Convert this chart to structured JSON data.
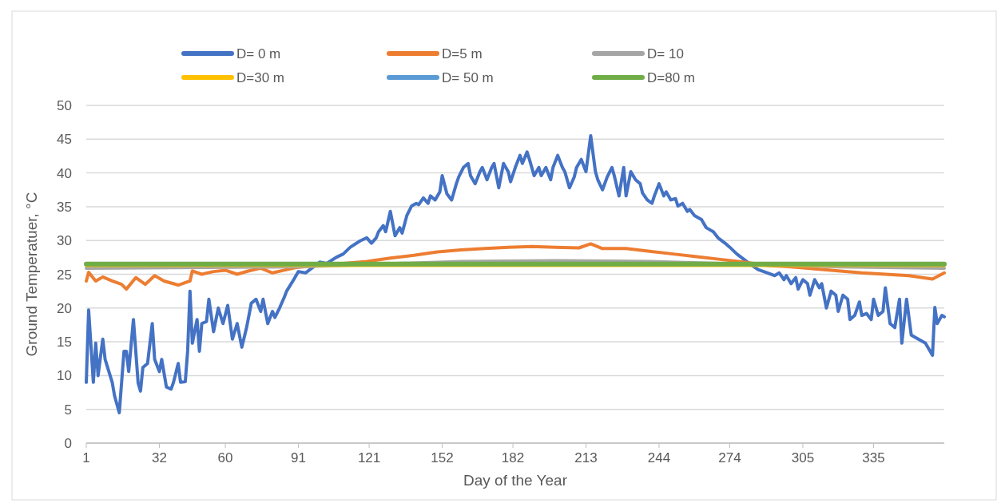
{
  "chart_data": {
    "type": "line",
    "xlabel": "Day of the Year",
    "ylabel": "Ground Temperatuer, °C",
    "xlim": [
      1,
      365
    ],
    "xticks": [
      1,
      32,
      60,
      91,
      121,
      152,
      182,
      213,
      244,
      274,
      305,
      335
    ],
    "ylim": [
      0,
      50
    ],
    "yticks": [
      0,
      5,
      10,
      15,
      20,
      25,
      30,
      35,
      40,
      45,
      50
    ],
    "grid": "y",
    "legend": "top",
    "line_style": "solid",
    "marker": "none",
    "series": [
      {
        "name": "D= 0 m",
        "color": "#4472c4",
        "x": [
          1,
          2,
          4,
          5,
          6,
          8,
          9,
          12,
          13,
          15,
          17,
          18,
          19,
          21,
          23,
          24,
          25,
          27,
          29,
          30,
          32,
          33,
          35,
          37,
          38,
          40,
          41,
          43,
          44,
          45,
          46,
          48,
          49,
          50,
          52,
          53,
          55,
          57,
          59,
          61,
          63,
          65,
          67,
          69,
          71,
          73,
          75,
          76,
          78,
          80,
          81,
          83,
          85,
          86,
          89,
          91,
          94,
          97,
          100,
          103,
          107,
          110,
          113,
          117,
          120,
          122,
          124,
          125,
          127,
          128,
          130,
          132,
          134,
          135,
          137,
          139,
          141,
          142,
          144,
          146,
          147,
          149,
          151,
          152,
          154,
          156,
          158,
          159,
          161,
          163,
          164,
          166,
          168,
          169,
          171,
          173,
          174,
          176,
          178,
          180,
          181,
          183,
          185,
          186,
          188,
          189,
          191,
          193,
          194,
          196,
          198,
          199,
          201,
          203,
          204,
          206,
          208,
          209,
          211,
          213,
          215,
          217,
          218,
          220,
          222,
          224,
          225,
          227,
          229,
          230,
          232,
          234,
          236,
          237,
          239,
          241,
          242,
          244,
          246,
          247,
          249,
          251,
          252,
          254,
          256,
          257,
          259,
          262,
          264,
          267,
          269,
          272,
          274,
          277,
          280,
          283,
          286,
          290,
          293,
          295,
          297,
          298,
          300,
          302,
          303,
          305,
          307,
          308,
          310,
          312,
          313,
          315,
          317,
          319,
          320,
          322,
          324,
          325,
          327,
          329,
          330,
          332,
          334,
          335,
          337,
          339,
          340,
          342,
          344,
          346,
          347,
          349,
          351,
          354,
          357,
          360,
          361,
          362,
          364,
          365
        ],
        "values": [
          9,
          19.7,
          9,
          14.8,
          10,
          15.4,
          12.4,
          9,
          7,
          4.5,
          13.6,
          13.6,
          10.6,
          18.3,
          8.9,
          7.7,
          11.2,
          11.8,
          17.7,
          12.4,
          10.6,
          12.4,
          8.3,
          8,
          9,
          11.8,
          9,
          9.1,
          13.6,
          22.5,
          14.8,
          18.3,
          13.6,
          17.7,
          18,
          21.3,
          16.5,
          20,
          17.7,
          20.4,
          15.4,
          17.7,
          14.2,
          17.1,
          20.7,
          21.3,
          19.5,
          21.3,
          17.7,
          19.5,
          18.6,
          20,
          21.6,
          22.5,
          24.2,
          25.4,
          25.2,
          26,
          26.8,
          26.6,
          27.5,
          28,
          29,
          29.9,
          30.4,
          29.6,
          30.4,
          31.3,
          32.2,
          31.3,
          34.3,
          30.7,
          31.9,
          31.1,
          33.7,
          35.1,
          35.5,
          35.3,
          36.3,
          35.5,
          36.6,
          36,
          37.2,
          39.6,
          36.9,
          36,
          38.4,
          39.4,
          40.8,
          41.4,
          39.6,
          38.4,
          40.2,
          40.8,
          39,
          40.8,
          41.4,
          37.8,
          41.4,
          40.2,
          38.7,
          40.8,
          42.6,
          41.4,
          43.1,
          42,
          39.6,
          40.8,
          39.6,
          40.8,
          39,
          40.8,
          42.6,
          40.8,
          40.2,
          37.8,
          39.4,
          40.8,
          42,
          40.2,
          45.5,
          40.2,
          39,
          37.5,
          39.4,
          40.8,
          39.6,
          36.6,
          40.8,
          36.6,
          40.2,
          39,
          38.4,
          37,
          36,
          35.5,
          36.6,
          38.4,
          36.6,
          37.2,
          36,
          36.2,
          35.1,
          35.5,
          34.3,
          34.6,
          33.7,
          33.1,
          31.9,
          31.3,
          30.4,
          29.6,
          29,
          28,
          27.2,
          26.4,
          25.7,
          25.2,
          24.8,
          25.2,
          24.2,
          24.8,
          23.6,
          24.5,
          22.8,
          24.2,
          23.6,
          21.9,
          24.2,
          23,
          23.6,
          20,
          22.5,
          21.9,
          19.5,
          21.9,
          21.3,
          18.3,
          18.9,
          20.9,
          18.9,
          19.2,
          18.3,
          21.3,
          18.9,
          19.5,
          23,
          17.7,
          17.1,
          21.3,
          14.8,
          21.3,
          16,
          15.4,
          14.8,
          13,
          20.1,
          17.7,
          18.9,
          18.7
        ]
      },
      {
        "name": "D=5 m",
        "color": "#ed7d31",
        "x": [
          1,
          2,
          5,
          8,
          12,
          16,
          18,
          22,
          26,
          30,
          34,
          40,
          45,
          46,
          50,
          55,
          60,
          65,
          70,
          75,
          80,
          85,
          90,
          100,
          110,
          120,
          130,
          140,
          150,
          160,
          170,
          180,
          190,
          200,
          210,
          215,
          220,
          230,
          240,
          250,
          260,
          270,
          280,
          290,
          300,
          310,
          320,
          330,
          340,
          350,
          360,
          365
        ],
        "values": [
          24,
          25.3,
          24,
          24.6,
          24,
          23.5,
          22.8,
          24.5,
          23.5,
          24.8,
          24,
          23.4,
          24,
          25.5,
          25,
          25.4,
          25.6,
          25,
          25.5,
          25.9,
          25.2,
          25.6,
          26,
          26.3,
          26.6,
          26.9,
          27.4,
          27.8,
          28.3,
          28.6,
          28.8,
          29,
          29.1,
          29,
          28.9,
          29.5,
          28.8,
          28.8,
          28.4,
          28,
          27.6,
          27.2,
          26.8,
          26.3,
          26.1,
          25.8,
          25.5,
          25.2,
          25,
          24.8,
          24.3,
          25.2
        ]
      },
      {
        "name": "D= 10",
        "color": "#a5a5a5",
        "x": [
          1,
          90,
          160,
          200,
          240,
          320,
          365
        ],
        "values": [
          25.9,
          26.1,
          26.9,
          27,
          26.9,
          26.1,
          25.9
        ]
      },
      {
        "name": "D=30 m",
        "color": "#ffc000",
        "x": [
          1,
          365
        ],
        "values": [
          26.3,
          26.3
        ]
      },
      {
        "name": "D= 50 m",
        "color": "#5b9bd5"
      },
      {
        "name": "D=80 m",
        "color": "#70ad47",
        "x": [
          1,
          365
        ],
        "values": [
          26.5,
          26.5
        ]
      }
    ]
  }
}
